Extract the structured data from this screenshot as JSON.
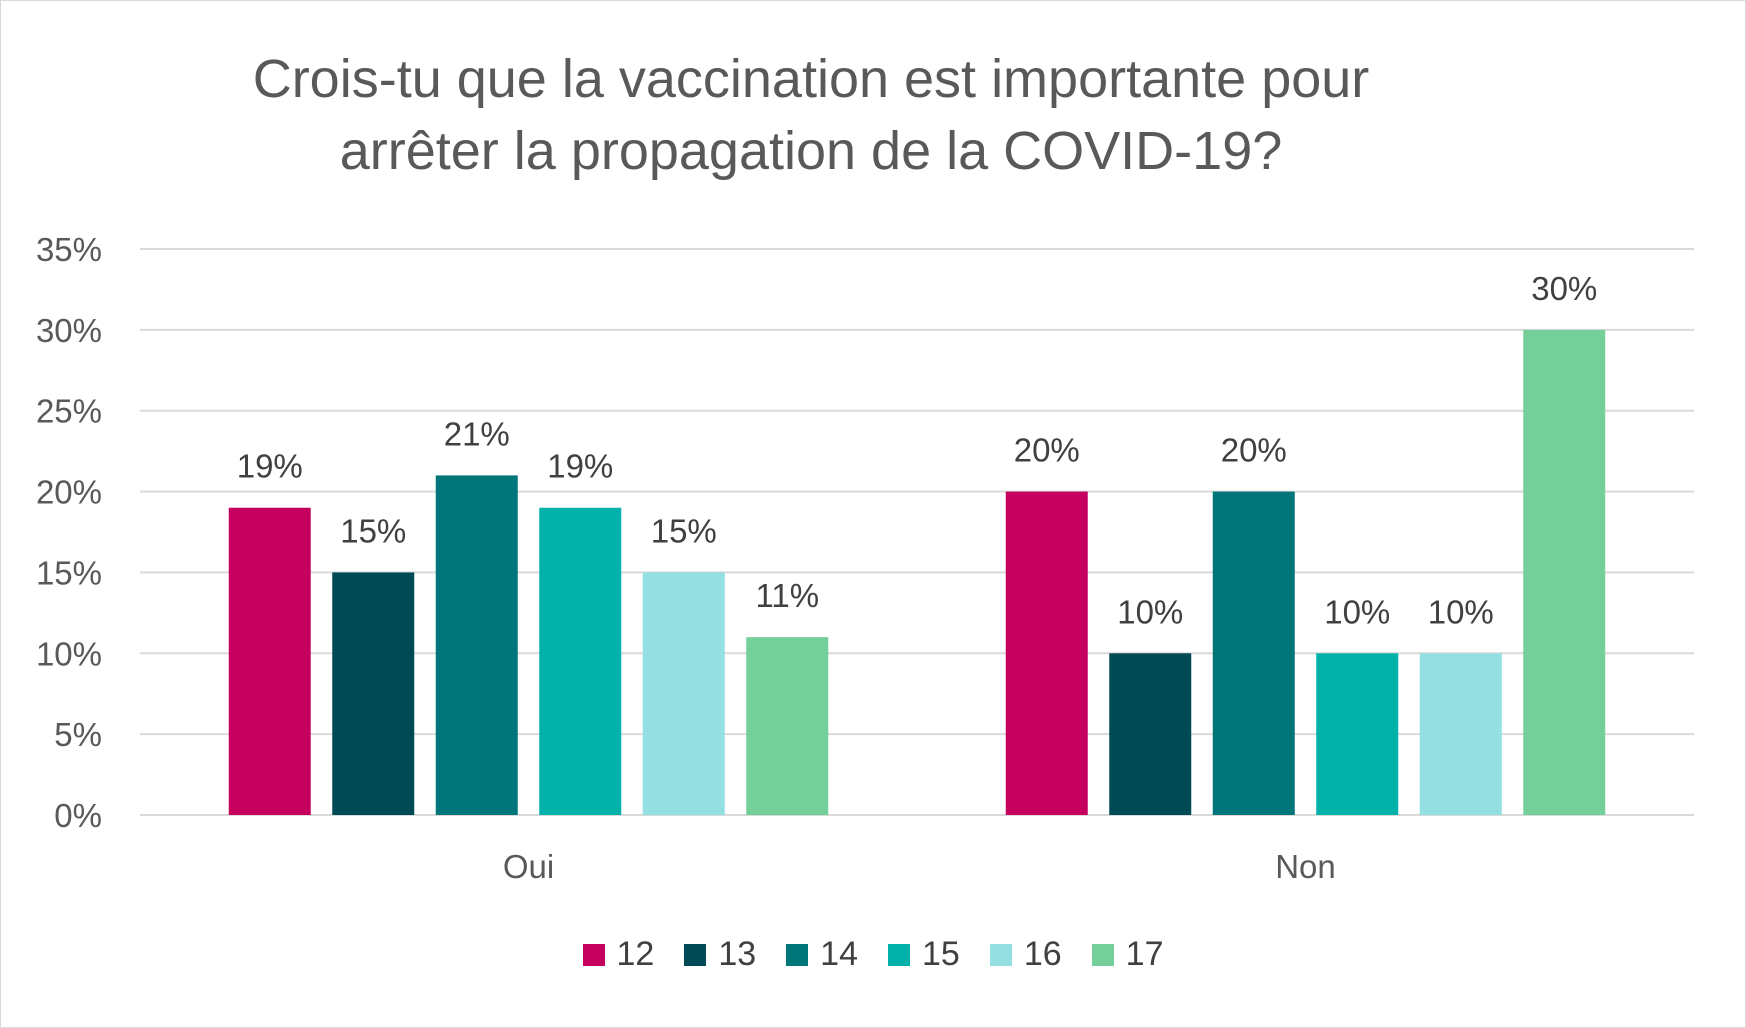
{
  "chart_data": {
    "type": "bar",
    "title_lines": [
      "Crois-tu que la vaccination est importante pour",
      "arrêter la propagation de la COVID-19?"
    ],
    "categories": [
      "Oui",
      "Non"
    ],
    "series": [
      {
        "name": "12",
        "color": "#C6005F",
        "values": [
          19,
          20
        ]
      },
      {
        "name": "13",
        "color": "#004A55",
        "values": [
          15,
          10
        ]
      },
      {
        "name": "14",
        "color": "#00757A",
        "values": [
          21,
          20
        ]
      },
      {
        "name": "15",
        "color": "#00B2A9",
        "values": [
          19,
          10
        ]
      },
      {
        "name": "16",
        "color": "#94DFE1",
        "values": [
          15,
          10
        ]
      },
      {
        "name": "17",
        "color": "#75CF9A",
        "values": [
          11,
          30
        ]
      }
    ],
    "value_format": "percent",
    "ylim": [
      0,
      35
    ],
    "yticks": [
      0,
      5,
      10,
      15,
      20,
      25,
      30,
      35
    ],
    "ytick_labels": [
      "0%",
      "5%",
      "10%",
      "15%",
      "20%",
      "25%",
      "30%",
      "35%"
    ],
    "grid": true,
    "legend_position": "bottom"
  }
}
